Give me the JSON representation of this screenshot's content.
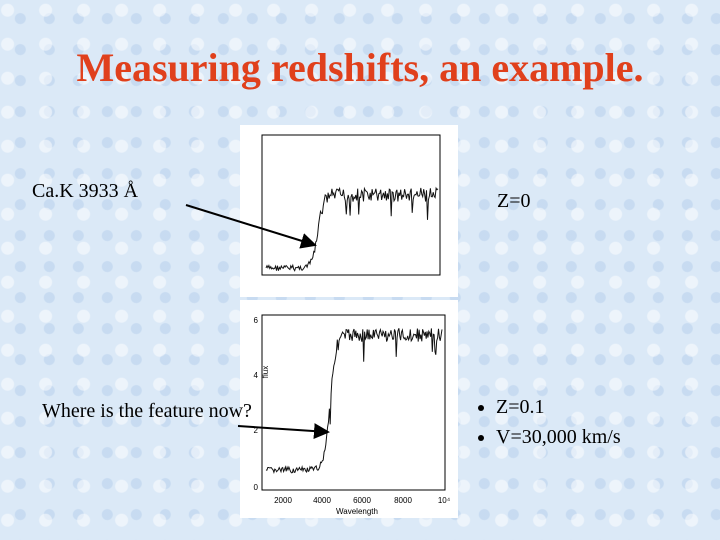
{
  "title": "Measuring redshifts, an example.",
  "left_labels": {
    "cak": "Ca.K 3933 Å",
    "question": "Where is the feature now?"
  },
  "right_labels": {
    "z0": "Z=0"
  },
  "bullets": [
    "Z=0.1",
    "V=30,000 km/s"
  ],
  "lower_plot": {
    "xticks": [
      "2000",
      "4000",
      "6000",
      "8000",
      "10⁴"
    ],
    "yticks": [
      "0",
      "2",
      "4",
      "6"
    ],
    "xlabel": "Wavelength",
    "ylabel": "flux"
  }
}
